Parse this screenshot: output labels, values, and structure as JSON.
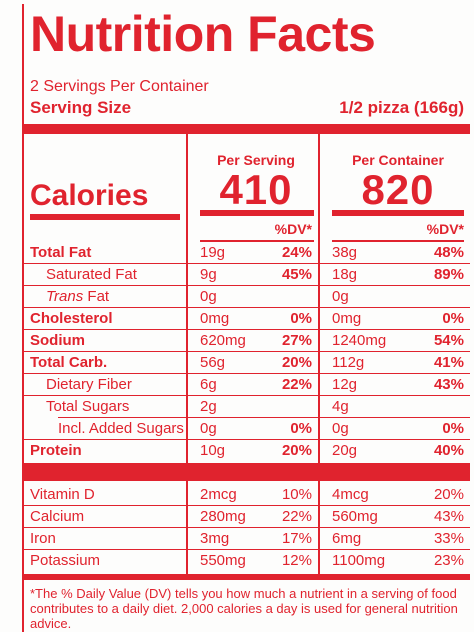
{
  "label": {
    "title": "Nutrition Facts",
    "servings_per_container": "2 Servings Per Container",
    "serving_size_label": "Serving Size",
    "serving_size_value": "1/2 pizza (166g)",
    "per_serving_header": "Per Serving",
    "per_container_header": "Per Container",
    "calories_label": "Calories",
    "calories_per_serving": "410",
    "calories_per_container": "820",
    "dv_header": "%DV*",
    "footnote": "*The % Daily Value (DV) tells you how much a nutrient in a serving of food contributes to a daily diet. 2,000 calories a day is used for general nutrition advice."
  },
  "nutrients": [
    {
      "name": "Total Fat",
      "serving_amount": "19g",
      "serving_dv": "24%",
      "container_amount": "38g",
      "container_dv": "48%"
    },
    {
      "name": "Saturated Fat",
      "serving_amount": "9g",
      "serving_dv": "45%",
      "container_amount": "18g",
      "container_dv": "89%"
    },
    {
      "name_italic": "Trans",
      "name": " Fat",
      "serving_amount": "0g",
      "serving_dv": "",
      "container_amount": "0g",
      "container_dv": ""
    },
    {
      "name": "Cholesterol",
      "serving_amount": "0mg",
      "serving_dv": "0%",
      "container_amount": "0mg",
      "container_dv": "0%"
    },
    {
      "name": "Sodium",
      "serving_amount": "620mg",
      "serving_dv": "27%",
      "container_amount": "1240mg",
      "container_dv": "54%"
    },
    {
      "name": "Total Carb.",
      "serving_amount": "56g",
      "serving_dv": "20%",
      "container_amount": "112g",
      "container_dv": "41%"
    },
    {
      "name": "Dietary Fiber",
      "serving_amount": "6g",
      "serving_dv": "22%",
      "container_amount": "12g",
      "container_dv": "43%"
    },
    {
      "name": "Total Sugars",
      "serving_amount": "2g",
      "serving_dv": "",
      "container_amount": "4g",
      "container_dv": ""
    },
    {
      "name": "Incl. Added Sugars",
      "serving_amount": "0g",
      "serving_dv": "0%",
      "container_amount": "0g",
      "container_dv": "0%"
    },
    {
      "name": "Protein",
      "serving_amount": "10g",
      "serving_dv": "20%",
      "container_amount": "20g",
      "container_dv": "40%"
    }
  ],
  "vitamins": [
    {
      "name": "Vitamin D",
      "serving_amount": "2mcg",
      "serving_dv": "10%",
      "container_amount": "4mcg",
      "container_dv": "20%"
    },
    {
      "name": "Calcium",
      "serving_amount": "280mg",
      "serving_dv": "22%",
      "container_amount": "560mg",
      "container_dv": "43%"
    },
    {
      "name": "Iron",
      "serving_amount": "3mg",
      "serving_dv": "17%",
      "container_amount": "6mg",
      "container_dv": "33%"
    },
    {
      "name": "Potassium",
      "serving_amount": "550mg",
      "serving_dv": "12%",
      "container_amount": "1100mg",
      "container_dv": "23%"
    }
  ],
  "colors": {
    "ink": "#e0232e",
    "paper": "#fdfdfc"
  }
}
